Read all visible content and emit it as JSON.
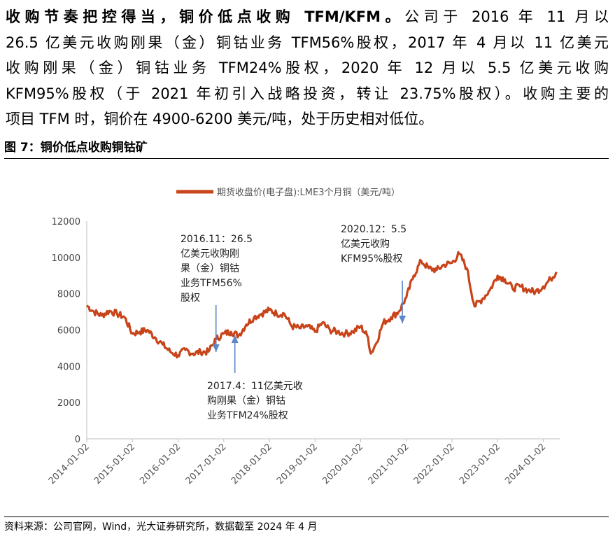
{
  "paragraph": {
    "lead": "收购节奏把控得当，铜价低点收购 TFM/KFM。",
    "line1_rest": "公司于 2016 年 11 月以",
    "line2": "26.5 亿美元收购刚果（金）铜钴业务 TFM56%股权，2017 年 4 月以 11 亿美元",
    "line3": "收购刚果（金）铜钴业务 TFM24%股权，2020 年 12 月以 5.5 亿美元收购",
    "line4": "KFM95%股权（于 2021 年初引入战略投资，转让 23.75%股权）。收购主要的",
    "line5": "项目 TFM 时，铜价在 4900-6200 美元/吨，处于历史相对低位。"
  },
  "figure_title": "图 7：铜价低点收购铜钴矿",
  "source_note": "资料来源：公司官网，Wind，光大证券研究所，数据截至 2024 年 4 月",
  "chart_data": {
    "type": "line",
    "series": [
      {
        "name": "期货收盘价(电子盘):LME3个月铜（美元/吨）",
        "color": "#c8441a",
        "x": [
          "2014-01-02",
          "2014-03-01",
          "2014-05-01",
          "2014-07-01",
          "2014-09-01",
          "2014-11-01",
          "2015-01-02",
          "2015-03-01",
          "2015-05-01",
          "2015-07-01",
          "2015-09-01",
          "2015-11-01",
          "2016-01-02",
          "2016-03-01",
          "2016-05-01",
          "2016-07-01",
          "2016-09-01",
          "2016-11-01",
          "2017-01-02",
          "2017-03-01",
          "2017-05-01",
          "2017-07-01",
          "2017-09-01",
          "2017-11-01",
          "2018-01-02",
          "2018-03-01",
          "2018-05-01",
          "2018-07-01",
          "2018-09-01",
          "2018-11-01",
          "2019-01-02",
          "2019-03-01",
          "2019-05-01",
          "2019-07-01",
          "2019-09-01",
          "2019-11-01",
          "2020-01-02",
          "2020-03-01",
          "2020-03-23",
          "2020-05-01",
          "2020-07-01",
          "2020-09-01",
          "2020-11-01",
          "2021-01-02",
          "2021-03-01",
          "2021-05-01",
          "2021-07-01",
          "2021-09-01",
          "2021-11-01",
          "2022-01-02",
          "2022-03-01",
          "2022-05-01",
          "2022-07-01",
          "2022-09-01",
          "2022-11-01",
          "2023-01-02",
          "2023-03-01",
          "2023-05-01",
          "2023-07-01",
          "2023-09-01",
          "2023-11-01",
          "2024-01-02",
          "2024-03-01",
          "2024-04-15"
        ],
        "values": [
          7350,
          7000,
          6800,
          7050,
          6900,
          6700,
          5800,
          5900,
          6000,
          5600,
          5200,
          4800,
          4600,
          4900,
          4700,
          4800,
          4800,
          5500,
          5800,
          5900,
          5700,
          6300,
          6700,
          6900,
          7100,
          6900,
          6900,
          6200,
          6100,
          6200,
          5900,
          6400,
          6000,
          5900,
          5800,
          5900,
          6200,
          5600,
          4700,
          5200,
          6400,
          6700,
          7000,
          7800,
          9000,
          9800,
          9400,
          9300,
          9600,
          9700,
          10200,
          9400,
          7300,
          7700,
          8200,
          9000,
          8800,
          8300,
          8400,
          8200,
          8100,
          8400,
          8800,
          9200
        ]
      }
    ],
    "ylim": [
      0,
      12000
    ],
    "y_ticks": [
      "0",
      "2000",
      "4000",
      "6000",
      "8000",
      "10000",
      "12000"
    ],
    "x_ticks": [
      "2014-01-02",
      "2015-01-02",
      "2016-01-02",
      "2017-01-02",
      "2018-01-02",
      "2019-01-02",
      "2020-01-02",
      "2021-01-02",
      "2022-01-02",
      "2023-01-02",
      "2024-01-02"
    ],
    "legend_position": "top-center",
    "grid": false,
    "annotations": [
      {
        "lines": [
          "2016.11：26.5",
          "亿美元收购刚",
          "果（金）铜钴",
          "业务TFM56%",
          "股权"
        ],
        "date": "2016-11-01",
        "value": 4800,
        "arrow": "down"
      },
      {
        "lines": [
          "2017.4：11亿美元收",
          "购刚果（金）铜钴",
          "业务TFM24%股权"
        ],
        "date": "2017-04-01",
        "value": 5800,
        "arrow": "up"
      },
      {
        "lines": [
          "2020.12：5.5",
          "亿美元收购",
          "KFM95%股权"
        ],
        "date": "2020-12-01",
        "value": 6500,
        "arrow": "down"
      }
    ]
  }
}
